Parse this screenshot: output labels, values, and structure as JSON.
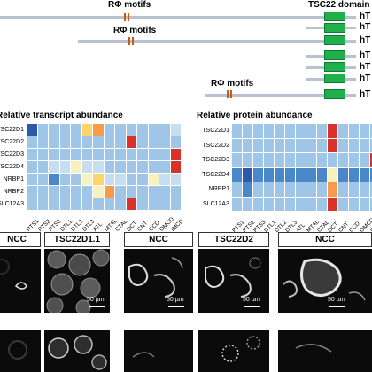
{
  "figure": {
    "panel_a": {
      "motif_label": "RΦ motifs",
      "domain_label": "TSC22 domain",
      "isoform_prefix": "hT"
    },
    "panel_b": {
      "transcript_title": "Relative transcript abundance",
      "protein_title": "Relative protein abundance",
      "transcript_rows": [
        "TSC22D1",
        "TSC22D2",
        "TSC22D3",
        "TSC22D4",
        "NRBP1",
        "NRBP2",
        "SLC12A3"
      ],
      "protein_rows": [
        "TSC22D1",
        "TSC22D2",
        "TSC22D3",
        "TSC22D4",
        "NRBP1",
        "SLC12A3"
      ],
      "columns": [
        "PTS1",
        "PTS2",
        "PTS3",
        "DTL1",
        "DTL2",
        "DTL3",
        "ATL",
        "MTAL",
        "CTAL",
        "DCT",
        "CNT",
        "CCD",
        "OMCD",
        "IMCD"
      ],
      "palette": {
        "dark": "#2c5aa8",
        "mid": "#4a87c9",
        "light": "#9fc6e6",
        "pale": "#c6dff0",
        "cream": "#f7f1be",
        "yellow": "#fbd56a",
        "orange": "#f79a4b",
        "red": "#d9322a"
      },
      "transcript_cells": [
        [
          "dark",
          "light",
          "light",
          "light",
          "light",
          "yellow",
          "orange",
          "light",
          "light",
          "light",
          "light",
          "light",
          "light",
          "pale"
        ],
        [
          "light",
          "light",
          "light",
          "light",
          "light",
          "light",
          "light",
          "light",
          "light",
          "red",
          "light",
          "light",
          "light",
          "light"
        ],
        [
          "light",
          "light",
          "light",
          "light",
          "light",
          "light",
          "light",
          "light",
          "light",
          "light",
          "light",
          "light",
          "light",
          "red"
        ],
        [
          "light",
          "light",
          "pale",
          "pale",
          "cream",
          "pale",
          "pale",
          "light",
          "light",
          "light",
          "light",
          "light",
          "light",
          "red"
        ],
        [
          "light",
          "light",
          "mid",
          "light",
          "light",
          "cream",
          "yellow",
          "pale",
          "pale",
          "light",
          "light",
          "cream",
          "pale",
          "pale"
        ],
        [
          "light",
          "light",
          "light",
          "light",
          "light",
          "light",
          "cream",
          "orange",
          "light",
          "light",
          "light",
          "light",
          "light",
          "light"
        ],
        [
          "light",
          "light",
          "light",
          "light",
          "light",
          "light",
          "light",
          "light",
          "light",
          "red",
          "light",
          "light",
          "light",
          "light"
        ]
      ],
      "protein_cells": [
        [
          "light",
          "light",
          "light",
          "light",
          "light",
          "light",
          "light",
          "light",
          "light",
          "red",
          "light",
          "light",
          "light",
          "light"
        ],
        [
          "light",
          "light",
          "light",
          "light",
          "light",
          "light",
          "light",
          "light",
          "light",
          "red",
          "light",
          "light",
          "light",
          "light"
        ],
        [
          "light",
          "light",
          "light",
          "light",
          "light",
          "light",
          "light",
          "light",
          "light",
          "light",
          "light",
          "light",
          "light",
          "red"
        ],
        [
          "mid",
          "dark",
          "mid",
          "mid",
          "mid",
          "mid",
          "mid",
          "mid",
          "mid",
          "cream",
          "mid",
          "mid",
          "mid",
          "mid"
        ],
        [
          "light",
          "mid",
          "light",
          "light",
          "light",
          "light",
          "light",
          "light",
          "light",
          "orange",
          "light",
          "light",
          "light",
          "light"
        ],
        [
          "light",
          "light",
          "light",
          "light",
          "light",
          "light",
          "light",
          "light",
          "light",
          "red",
          "light",
          "light",
          "light",
          "light"
        ]
      ]
    },
    "panel_c": {
      "headers": [
        "NCC",
        "TSC22D1.1",
        "NCC",
        "TSC22D2",
        "NCC"
      ],
      "scale_label": "50 µm"
    }
  }
}
